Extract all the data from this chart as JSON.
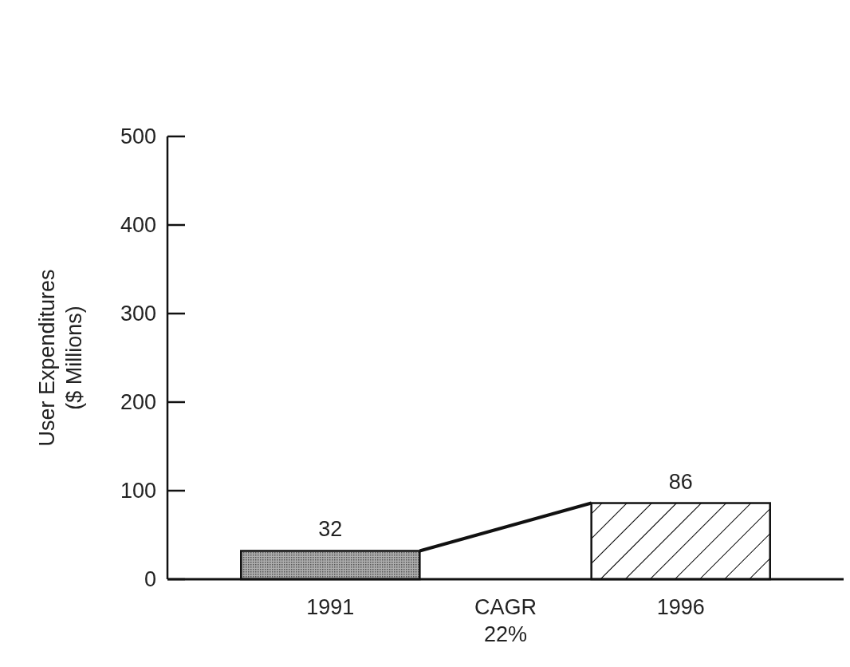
{
  "chart_data": {
    "type": "bar",
    "ylabel": "User Expenditures\n($ Millions)",
    "categories": [
      "1991",
      "1996"
    ],
    "values": [
      32,
      86
    ],
    "colors": [
      "#a0a0a0",
      "#000000"
    ],
    "ylim": [
      0,
      500
    ],
    "yticks": [
      0,
      100,
      200,
      300,
      400,
      500
    ],
    "data_labels": true,
    "grid": false,
    "annotations": [
      "CAGR 22%"
    ]
  }
}
